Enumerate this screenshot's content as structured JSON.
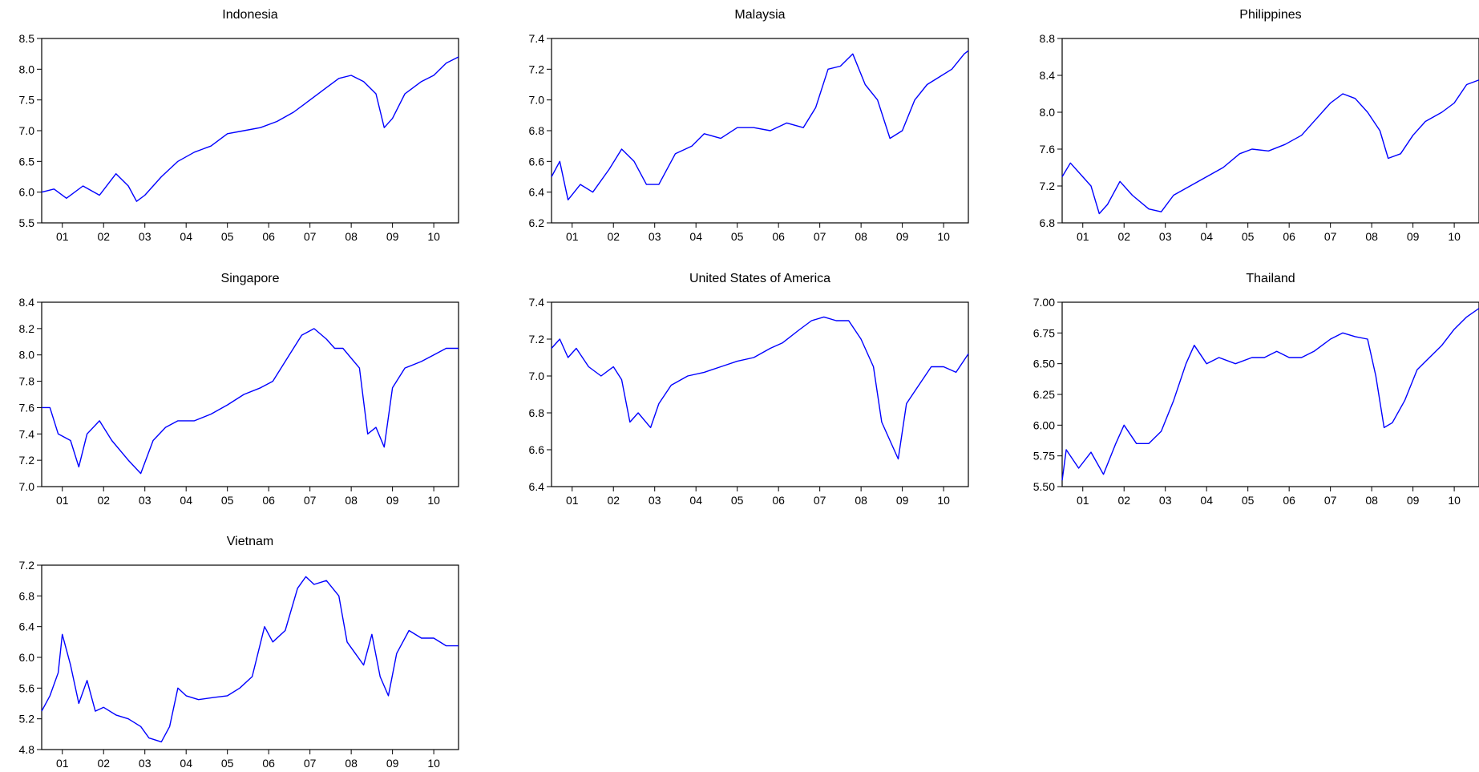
{
  "line_color": "#0000ff",
  "chart_data": [
    {
      "type": "line",
      "title": "Indonesia",
      "x": [
        2000.5,
        2000.8,
        2001.1,
        2001.5,
        2001.9,
        2002.3,
        2002.6,
        2002.8,
        2003.0,
        2003.4,
        2003.8,
        2004.2,
        2004.6,
        2005.0,
        2005.4,
        2005.8,
        2006.2,
        2006.6,
        2007.0,
        2007.4,
        2007.7,
        2008.0,
        2008.3,
        2008.6,
        2008.8,
        2009.0,
        2009.3,
        2009.7,
        2010.0,
        2010.3,
        2010.6
      ],
      "series": [
        {
          "values": [
            6.0,
            6.05,
            5.9,
            6.1,
            5.95,
            6.3,
            6.1,
            5.85,
            5.95,
            6.25,
            6.5,
            6.65,
            6.75,
            6.95,
            7.0,
            7.05,
            7.15,
            7.3,
            7.5,
            7.7,
            7.85,
            7.9,
            7.8,
            7.6,
            7.05,
            7.2,
            7.6,
            7.8,
            7.9,
            8.1,
            8.2
          ]
        }
      ],
      "ylim": [
        5.5,
        8.5
      ],
      "yticks": [
        "5.5",
        "6.0",
        "6.5",
        "7.0",
        "7.5",
        "8.0",
        "8.5"
      ],
      "xticks": [
        "01",
        "02",
        "03",
        "04",
        "05",
        "06",
        "07",
        "08",
        "09",
        "10"
      ]
    },
    {
      "type": "line",
      "title": "Malaysia",
      "x": [
        2000.5,
        2000.7,
        2000.9,
        2001.2,
        2001.5,
        2001.9,
        2002.2,
        2002.5,
        2002.8,
        2003.1,
        2003.5,
        2003.9,
        2004.2,
        2004.6,
        2005.0,
        2005.4,
        2005.8,
        2006.2,
        2006.6,
        2006.9,
        2007.2,
        2007.5,
        2007.8,
        2008.1,
        2008.4,
        2008.7,
        2009.0,
        2009.3,
        2009.6,
        2009.9,
        2010.2,
        2010.5,
        2010.6
      ],
      "series": [
        {
          "values": [
            6.5,
            6.6,
            6.35,
            6.45,
            6.4,
            6.55,
            6.68,
            6.6,
            6.45,
            6.45,
            6.65,
            6.7,
            6.78,
            6.75,
            6.82,
            6.82,
            6.8,
            6.85,
            6.82,
            6.95,
            7.2,
            7.22,
            7.3,
            7.1,
            7.0,
            6.75,
            6.8,
            7.0,
            7.1,
            7.15,
            7.2,
            7.3,
            7.32
          ]
        }
      ],
      "ylim": [
        6.2,
        7.4
      ],
      "yticks": [
        "6.2",
        "6.4",
        "6.6",
        "6.8",
        "7.0",
        "7.2",
        "7.4"
      ],
      "xticks": [
        "01",
        "02",
        "03",
        "04",
        "05",
        "06",
        "07",
        "08",
        "09",
        "10"
      ]
    },
    {
      "type": "line",
      "title": "Philippines",
      "x": [
        2000.5,
        2000.7,
        2001.0,
        2001.2,
        2001.4,
        2001.6,
        2001.9,
        2002.2,
        2002.6,
        2002.9,
        2003.2,
        2003.6,
        2004.0,
        2004.4,
        2004.8,
        2005.1,
        2005.5,
        2005.9,
        2006.3,
        2006.7,
        2007.0,
        2007.3,
        2007.6,
        2007.9,
        2008.2,
        2008.4,
        2008.7,
        2009.0,
        2009.3,
        2009.7,
        2010.0,
        2010.3,
        2010.6
      ],
      "series": [
        {
          "values": [
            7.3,
            7.45,
            7.3,
            7.2,
            6.9,
            7.0,
            7.25,
            7.1,
            6.95,
            6.92,
            7.1,
            7.2,
            7.3,
            7.4,
            7.55,
            7.6,
            7.58,
            7.65,
            7.75,
            7.95,
            8.1,
            8.2,
            8.15,
            8.0,
            7.8,
            7.5,
            7.55,
            7.75,
            7.9,
            8.0,
            8.1,
            8.3,
            8.35
          ]
        }
      ],
      "ylim": [
        6.8,
        8.8
      ],
      "yticks": [
        "6.8",
        "7.2",
        "7.6",
        "8.0",
        "8.4",
        "8.8"
      ],
      "xticks": [
        "01",
        "02",
        "03",
        "04",
        "05",
        "06",
        "07",
        "08",
        "09",
        "10"
      ]
    },
    {
      "type": "line",
      "title": "Singapore",
      "x": [
        2000.5,
        2000.7,
        2000.9,
        2001.2,
        2001.4,
        2001.6,
        2001.9,
        2002.2,
        2002.6,
        2002.9,
        2003.2,
        2003.5,
        2003.8,
        2004.2,
        2004.6,
        2005.0,
        2005.4,
        2005.8,
        2006.1,
        2006.5,
        2006.8,
        2007.1,
        2007.4,
        2007.6,
        2007.8,
        2008.2,
        2008.4,
        2008.6,
        2008.8,
        2009.0,
        2009.3,
        2009.7,
        2010.0,
        2010.3,
        2010.6
      ],
      "series": [
        {
          "values": [
            7.6,
            7.6,
            7.4,
            7.35,
            7.15,
            7.4,
            7.5,
            7.35,
            7.2,
            7.1,
            7.35,
            7.45,
            7.5,
            7.5,
            7.55,
            7.62,
            7.7,
            7.75,
            7.8,
            8.0,
            8.15,
            8.2,
            8.12,
            8.05,
            8.05,
            7.9,
            7.4,
            7.45,
            7.3,
            7.75,
            7.9,
            7.95,
            8.0,
            8.05,
            8.05
          ]
        }
      ],
      "ylim": [
        7.0,
        8.4
      ],
      "yticks": [
        "7.0",
        "7.2",
        "7.4",
        "7.6",
        "7.8",
        "8.0",
        "8.2",
        "8.4"
      ],
      "xticks": [
        "01",
        "02",
        "03",
        "04",
        "05",
        "06",
        "07",
        "08",
        "09",
        "10"
      ]
    },
    {
      "type": "line",
      "title": "United States of America",
      "x": [
        2000.5,
        2000.7,
        2000.9,
        2001.1,
        2001.4,
        2001.7,
        2002.0,
        2002.2,
        2002.4,
        2002.6,
        2002.9,
        2003.1,
        2003.4,
        2003.8,
        2004.2,
        2004.6,
        2005.0,
        2005.4,
        2005.8,
        2006.1,
        2006.5,
        2006.8,
        2007.1,
        2007.4,
        2007.7,
        2008.0,
        2008.3,
        2008.5,
        2008.7,
        2008.9,
        2009.1,
        2009.4,
        2009.7,
        2010.0,
        2010.3,
        2010.6
      ],
      "series": [
        {
          "values": [
            7.15,
            7.2,
            7.1,
            7.15,
            7.05,
            7.0,
            7.05,
            6.98,
            6.75,
            6.8,
            6.72,
            6.85,
            6.95,
            7.0,
            7.02,
            7.05,
            7.08,
            7.1,
            7.15,
            7.18,
            7.25,
            7.3,
            7.32,
            7.3,
            7.3,
            7.2,
            7.05,
            6.75,
            6.65,
            6.55,
            6.85,
            6.95,
            7.05,
            7.05,
            7.02,
            7.12
          ]
        }
      ],
      "ylim": [
        6.4,
        7.4
      ],
      "yticks": [
        "6.4",
        "6.6",
        "6.8",
        "7.0",
        "7.2",
        "7.4"
      ],
      "xticks": [
        "01",
        "02",
        "03",
        "04",
        "05",
        "06",
        "07",
        "08",
        "09",
        "10"
      ]
    },
    {
      "type": "line",
      "title": "Thailand",
      "x": [
        2000.5,
        2000.6,
        2000.9,
        2001.2,
        2001.5,
        2001.8,
        2002.0,
        2002.3,
        2002.6,
        2002.9,
        2003.2,
        2003.5,
        2003.7,
        2004.0,
        2004.3,
        2004.7,
        2005.1,
        2005.4,
        2005.7,
        2006.0,
        2006.3,
        2006.6,
        2007.0,
        2007.3,
        2007.6,
        2007.9,
        2008.1,
        2008.3,
        2008.5,
        2008.8,
        2009.1,
        2009.4,
        2009.7,
        2010.0,
        2010.3,
        2010.6
      ],
      "series": [
        {
          "values": [
            5.55,
            5.8,
            5.65,
            5.78,
            5.6,
            5.85,
            6.0,
            5.85,
            5.85,
            5.95,
            6.2,
            6.5,
            6.65,
            6.5,
            6.55,
            6.5,
            6.55,
            6.55,
            6.6,
            6.55,
            6.55,
            6.6,
            6.7,
            6.75,
            6.72,
            6.7,
            6.4,
            5.98,
            6.02,
            6.2,
            6.45,
            6.55,
            6.65,
            6.78,
            6.88,
            6.95
          ]
        }
      ],
      "ylim": [
        5.5,
        7.0
      ],
      "yticks": [
        "5.50",
        "5.75",
        "6.00",
        "6.25",
        "6.50",
        "6.75",
        "7.00"
      ],
      "xticks": [
        "01",
        "02",
        "03",
        "04",
        "05",
        "06",
        "07",
        "08",
        "09",
        "10"
      ]
    },
    {
      "type": "line",
      "title": "Vietnam",
      "x": [
        2000.5,
        2000.7,
        2000.9,
        2001.0,
        2001.2,
        2001.4,
        2001.6,
        2001.8,
        2002.0,
        2002.3,
        2002.6,
        2002.9,
        2003.1,
        2003.4,
        2003.6,
        2003.8,
        2004.0,
        2004.3,
        2004.7,
        2005.0,
        2005.3,
        2005.6,
        2005.9,
        2006.1,
        2006.4,
        2006.7,
        2006.9,
        2007.1,
        2007.4,
        2007.7,
        2007.9,
        2008.1,
        2008.3,
        2008.5,
        2008.7,
        2008.9,
        2009.1,
        2009.4,
        2009.7,
        2010.0,
        2010.3,
        2010.6
      ],
      "series": [
        {
          "values": [
            5.3,
            5.5,
            5.8,
            6.3,
            5.9,
            5.4,
            5.7,
            5.3,
            5.35,
            5.25,
            5.2,
            5.1,
            4.95,
            4.9,
            5.1,
            5.6,
            5.5,
            5.45,
            5.48,
            5.5,
            5.6,
            5.75,
            6.4,
            6.2,
            6.35,
            6.9,
            7.05,
            6.95,
            7.0,
            6.8,
            6.2,
            6.05,
            5.9,
            6.3,
            5.75,
            5.5,
            6.05,
            6.35,
            6.25,
            6.25,
            6.15,
            6.15
          ]
        }
      ],
      "ylim": [
        4.8,
        7.2
      ],
      "yticks": [
        "4.8",
        "5.2",
        "5.6",
        "6.0",
        "6.4",
        "6.8",
        "7.2"
      ],
      "xticks": [
        "01",
        "02",
        "03",
        "04",
        "05",
        "06",
        "07",
        "08",
        "09",
        "10"
      ]
    }
  ]
}
